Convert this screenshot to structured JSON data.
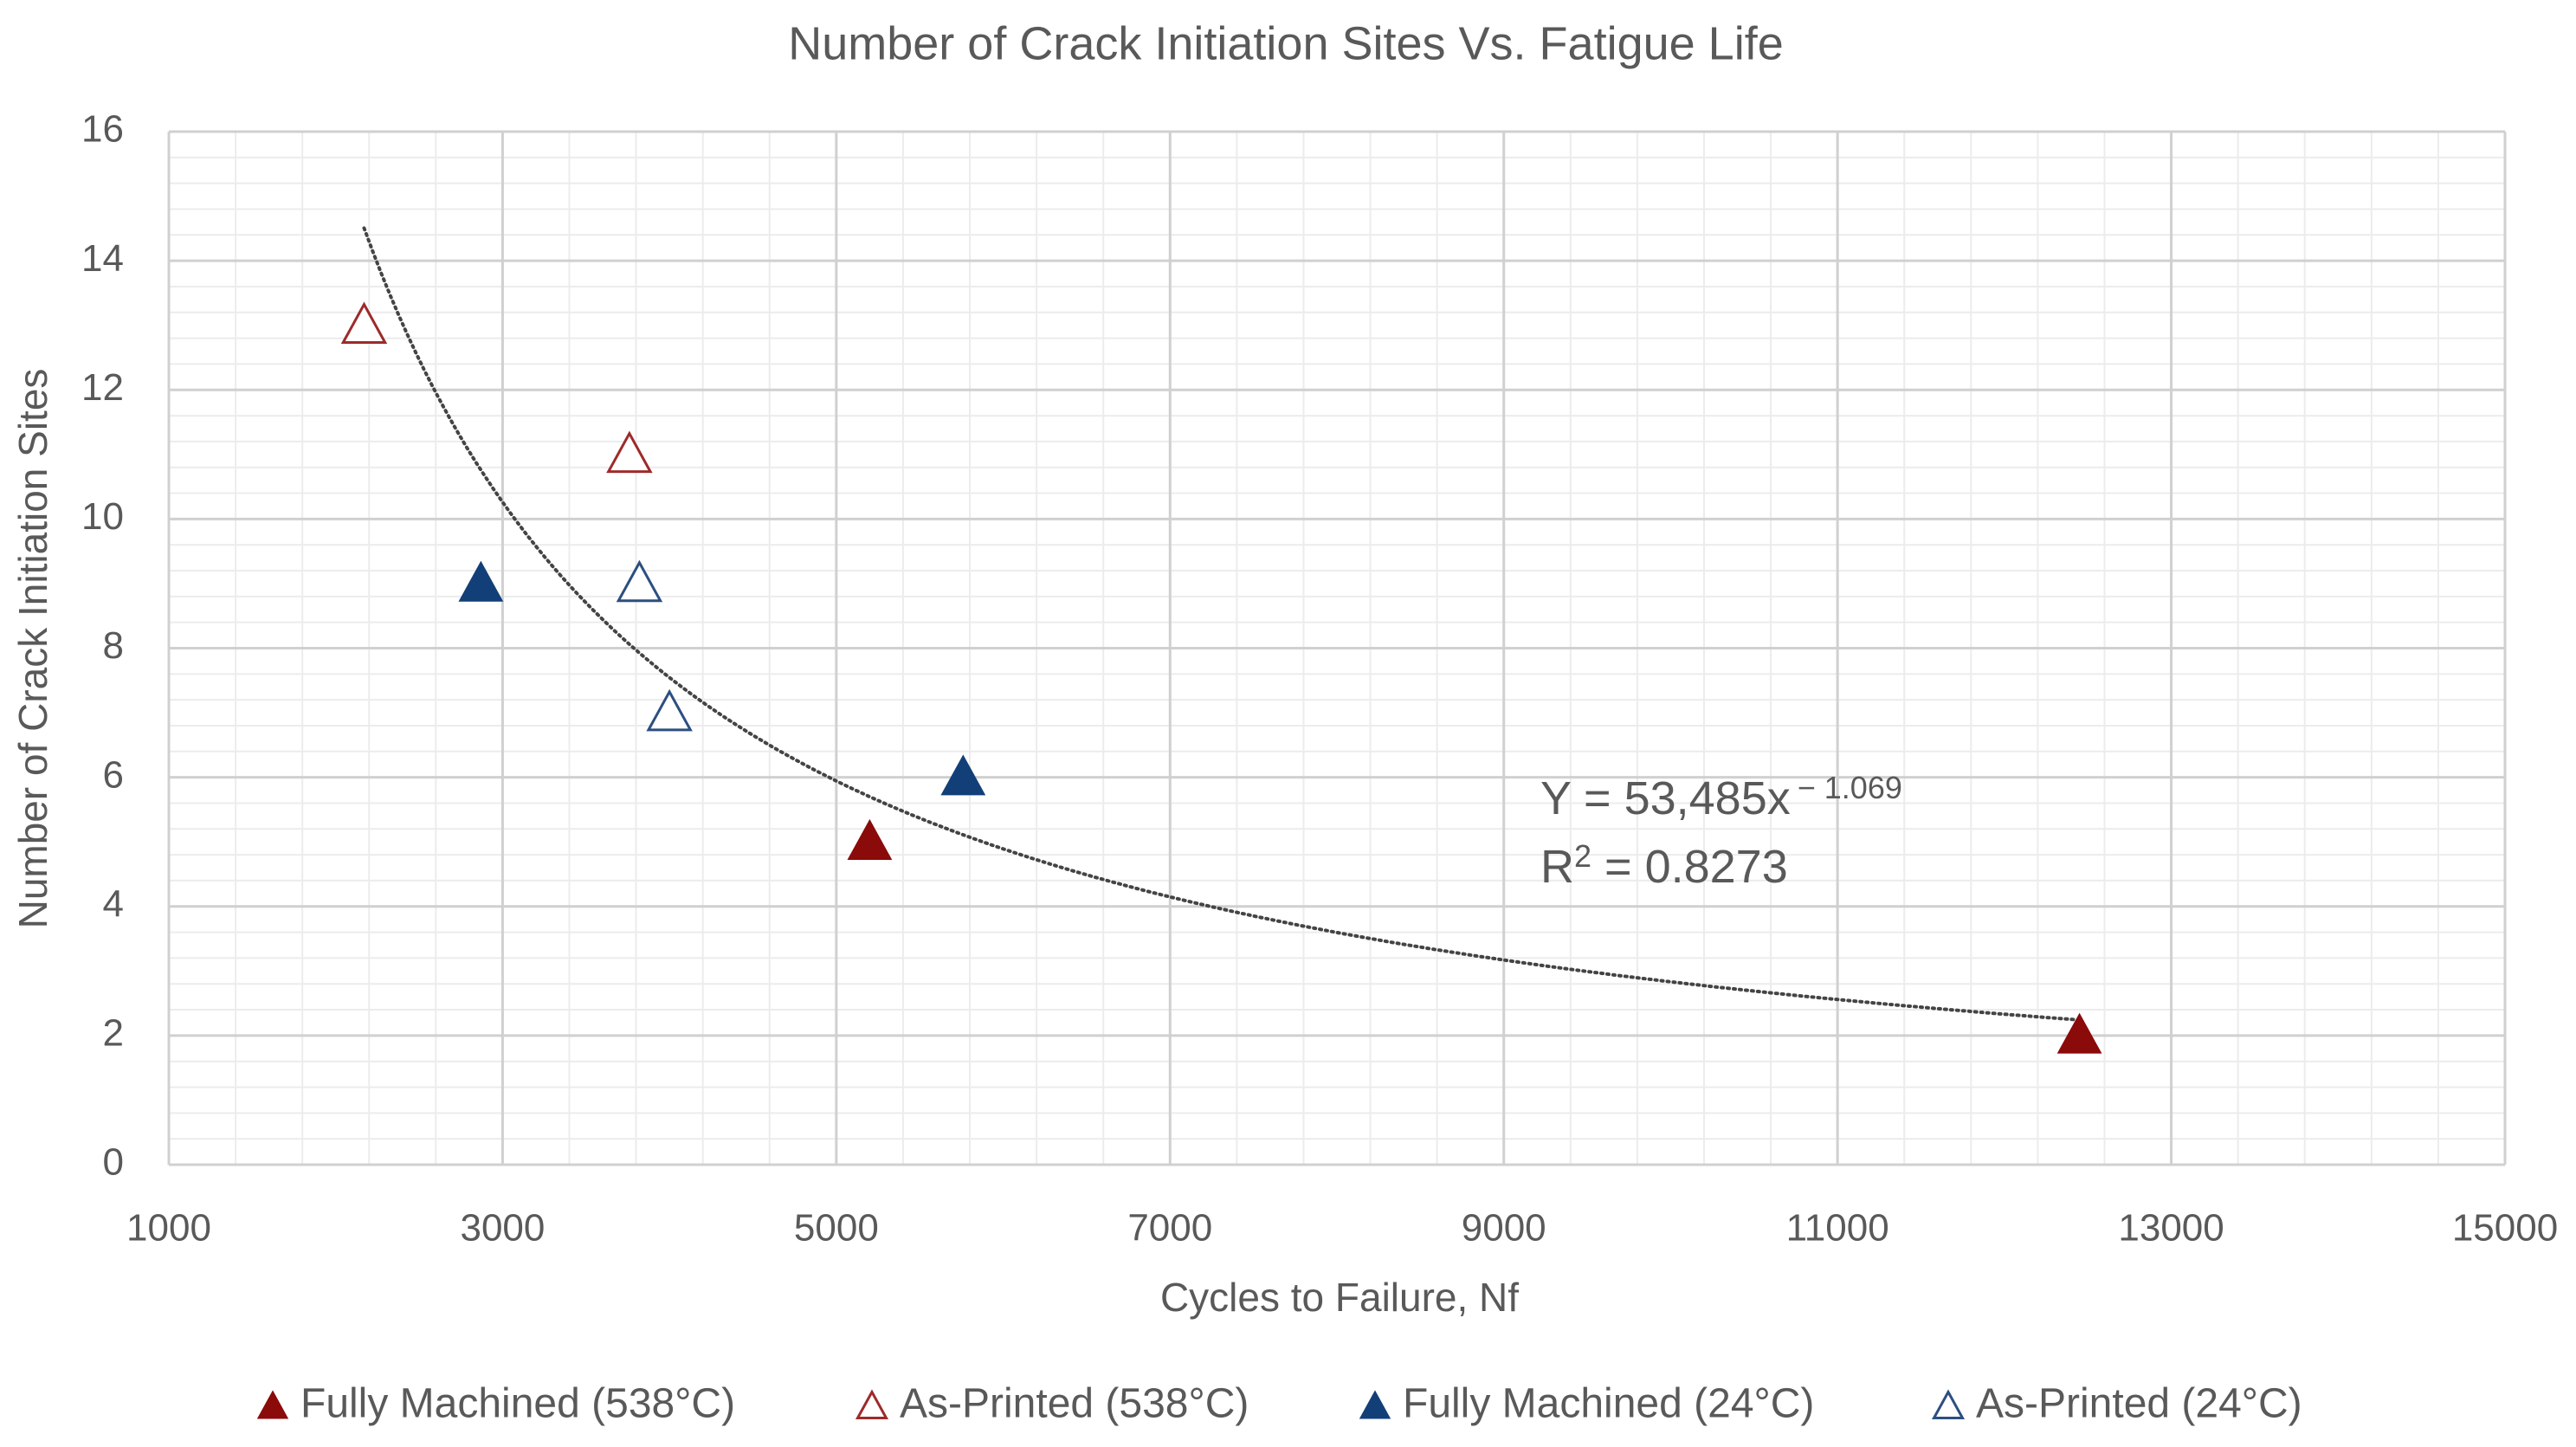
{
  "chart_data": {
    "type": "scatter",
    "title": "Number of Crack Initiation Sites Vs. Fatigue Life",
    "x_label": "Cycles to Failure, Nf",
    "y_label": "Number of Crack Initiation Sites",
    "xlim": [
      1000,
      15000
    ],
    "xticks": [
      1000,
      3000,
      5000,
      7000,
      9000,
      11000,
      13000,
      15000
    ],
    "ylim": [
      0,
      16
    ],
    "yticks": [
      0,
      2,
      4,
      6,
      8,
      10,
      12,
      14,
      16
    ],
    "grid": true,
    "minor_grid": true,
    "legend": "bottom",
    "series": [
      {
        "name": "Fully Machined (538°C)",
        "color": "#8b0a0a",
        "marker": "filled-triangle",
        "x": [
          5200,
          12450
        ],
        "values": [
          5,
          2
        ]
      },
      {
        "name": "As-Printed (538°C)",
        "color": "#9e2a2a",
        "marker": "open-triangle",
        "x": [
          2170,
          3760
        ],
        "values": [
          13,
          11
        ]
      },
      {
        "name": "Fully Machined (24°C)",
        "color": "#123f78",
        "marker": "filled-triangle",
        "x": [
          2870,
          5760
        ],
        "values": [
          9,
          6
        ]
      },
      {
        "name": "As-Printed (24°C)",
        "color": "#2c4f80",
        "marker": "open-triangle",
        "x": [
          3820,
          4000
        ],
        "values": [
          9,
          7
        ]
      }
    ],
    "trendline": {
      "type": "power",
      "a": 53485,
      "b": -1.069,
      "color": "#444444",
      "equation": [
        "Y = 53,485x",
        "− 1.069"
      ],
      "r_squared": [
        "R",
        "2",
        " = 0.8273"
      ]
    }
  }
}
